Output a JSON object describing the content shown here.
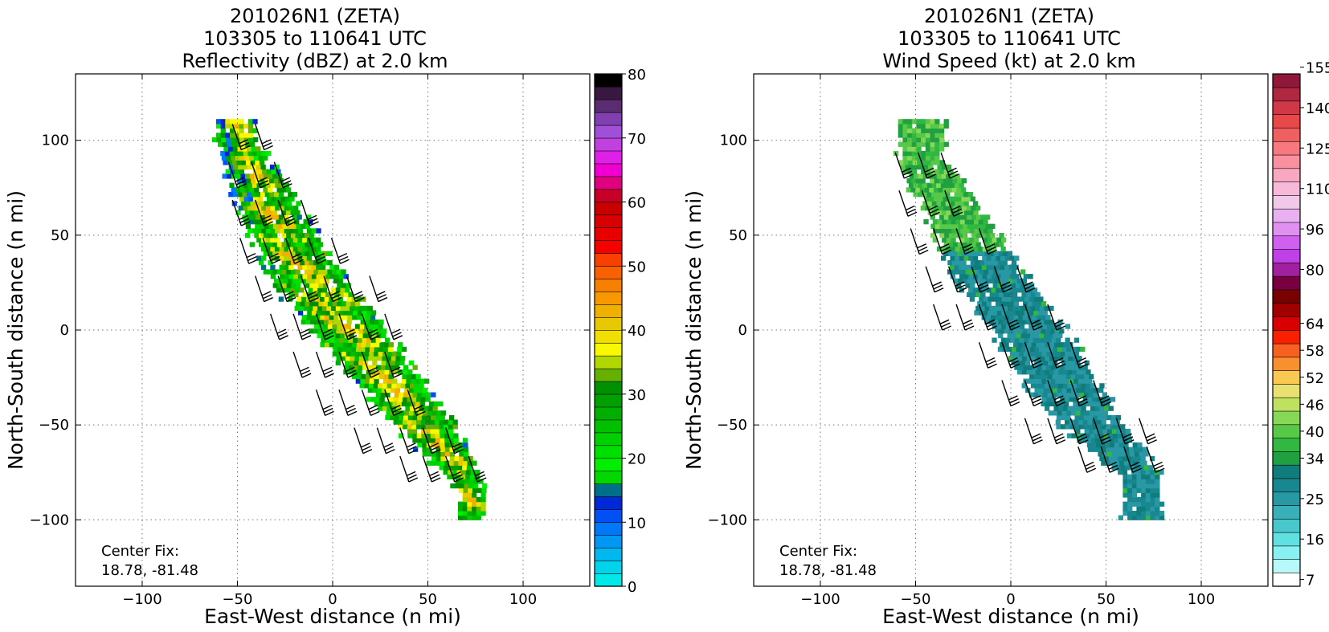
{
  "chart_data": [
    {
      "type": "heatmap",
      "title_lines": [
        "201026N1 (ZETA)",
        "103305 to 110641 UTC",
        "Reflectivity (dBZ) at 2.0 km"
      ],
      "xlabel": "East-West distance (n mi)",
      "ylabel": "North-South distance (n mi)",
      "xlim": [
        -135,
        135
      ],
      "ylim": [
        -135,
        135
      ],
      "xticks": [
        "−100",
        "−50",
        "0",
        "50",
        "100"
      ],
      "yticks": [
        "−100",
        "−50",
        "0",
        "50",
        "100"
      ],
      "grid": true,
      "annotation_lines": [
        "Center Fix:",
        "18.78, -81.48"
      ],
      "colorbar": {
        "label_values": [
          "0",
          "10",
          "20",
          "30",
          "40",
          "50",
          "60",
          "70",
          "80"
        ],
        "colors": [
          "#00e8e8",
          "#00d4ec",
          "#00b8f0",
          "#0098f4",
          "#0078f8",
          "#0050f4",
          "#0028d8",
          "#00708a",
          "#00d800",
          "#00f000",
          "#00e000",
          "#00d000",
          "#00c000",
          "#00b000",
          "#00a000",
          "#009000",
          "#66b000",
          "#b0d800",
          "#f8f800",
          "#f0e000",
          "#e8c800",
          "#f0b000",
          "#f89800",
          "#f88000",
          "#f86000",
          "#f84000",
          "#f80000",
          "#e80000",
          "#d80000",
          "#c80000",
          "#c80028",
          "#e00080",
          "#f000d0",
          "#e020e8",
          "#c040e0",
          "#a050d8",
          "#8040b0",
          "#5a2c70",
          "#381840",
          "#000000"
        ]
      },
      "features": {
        "band_center_x": [
          -52,
          -40,
          -28,
          -15,
          0,
          15,
          30,
          45,
          60,
          72
        ],
        "band_center_y": [
          100,
          75,
          50,
          28,
          8,
          -10,
          -30,
          -50,
          -68,
          -88
        ],
        "band_halfwidth_nmi": [
          10,
          15,
          17,
          19,
          19,
          19,
          17,
          16,
          12,
          7
        ],
        "peak_reflectivity_dbz": 42
      },
      "barbs": {
        "rows_y": [
          95,
          75,
          55,
          35,
          15,
          -5,
          -25,
          -45,
          -65,
          -80
        ],
        "cols_x": [
          [
            -48,
            -36
          ],
          [
            -50,
            -38,
            -26
          ],
          [
            -48,
            -36,
            -24,
            -12
          ],
          [
            -44,
            -32,
            -20,
            -8,
            4
          ],
          [
            -36,
            -24,
            -12,
            0,
            12,
            24
          ],
          [
            -28,
            -16,
            -4,
            8,
            20,
            32
          ],
          [
            -16,
            -4,
            8,
            20,
            32
          ],
          [
            -4,
            8,
            20,
            32,
            44
          ],
          [
            16,
            28,
            40,
            52,
            64
          ],
          [
            40,
            52,
            64,
            76
          ]
        ]
      }
    },
    {
      "type": "heatmap",
      "title_lines": [
        "201026N1 (ZETA)",
        "103305 to 110641 UTC",
        "Wind Speed (kt) at 2.0 km"
      ],
      "xlabel": "East-West distance (n mi)",
      "ylabel": "North-South distance (n mi)",
      "xlim": [
        -135,
        135
      ],
      "ylim": [
        -135,
        135
      ],
      "xticks": [
        "−100",
        "−50",
        "0",
        "50",
        "100"
      ],
      "yticks": [
        "−100",
        "−50",
        "0",
        "50",
        "100"
      ],
      "grid": true,
      "annotation_lines": [
        "Center Fix:",
        "18.78, -81.48"
      ],
      "colorbar": {
        "label_values": [
          "7",
          "16",
          "25",
          "34",
          "40",
          "46",
          "52",
          "58",
          "64",
          "80",
          "96",
          "110",
          "125",
          "140",
          "155"
        ],
        "colors": [
          "#ffffff",
          "#b8f8f8",
          "#88f0f0",
          "#60e0e0",
          "#48c8cc",
          "#38b0b8",
          "#2898a4",
          "#188890",
          "#107c7c",
          "#20a040",
          "#30b840",
          "#58c848",
          "#88d858",
          "#c0e060",
          "#e8e070",
          "#f8c850",
          "#f89030",
          "#f86020",
          "#f82000",
          "#d80000",
          "#a00000",
          "#780000",
          "#780040",
          "#a020a0",
          "#c040e8",
          "#d060f0",
          "#e090f0",
          "#e8b0f0",
          "#f0c8e8",
          "#f8b8d8",
          "#f8a8c0",
          "#f890a0",
          "#f87880",
          "#f06060",
          "#e84848",
          "#d03848",
          "#b02840",
          "#901838"
        ]
      },
      "features": {
        "band_center_x": [
          -48,
          -38,
          -26,
          -14,
          0,
          14,
          26,
          40,
          56,
          68
        ],
        "band_center_y": [
          88,
          72,
          52,
          30,
          10,
          -10,
          -30,
          -50,
          -66,
          -78
        ],
        "band_halfwidth_nmi": [
          12,
          15,
          16,
          18,
          19,
          20,
          19,
          17,
          14,
          10
        ],
        "dominant_speed_kt": 28,
        "green_region_ceiling_y": 40
      },
      "barbs": {
        "rows_y": [
          80,
          60,
          40,
          20,
          0,
          -20,
          -40,
          -60,
          -75
        ],
        "cols_x": [
          [
            -56,
            -44,
            -32
          ],
          [
            -54,
            -42,
            -30
          ],
          [
            -48,
            -36,
            -24,
            -12
          ],
          [
            -40,
            -28,
            -16,
            -4,
            8
          ],
          [
            -36,
            -24,
            -12,
            0,
            12,
            24
          ],
          [
            -12,
            0,
            12,
            24,
            36
          ],
          [
            0,
            12,
            24,
            36,
            48
          ],
          [
            12,
            24,
            36,
            48,
            60,
            72
          ],
          [
            40,
            52,
            64,
            76
          ]
        ]
      }
    }
  ]
}
